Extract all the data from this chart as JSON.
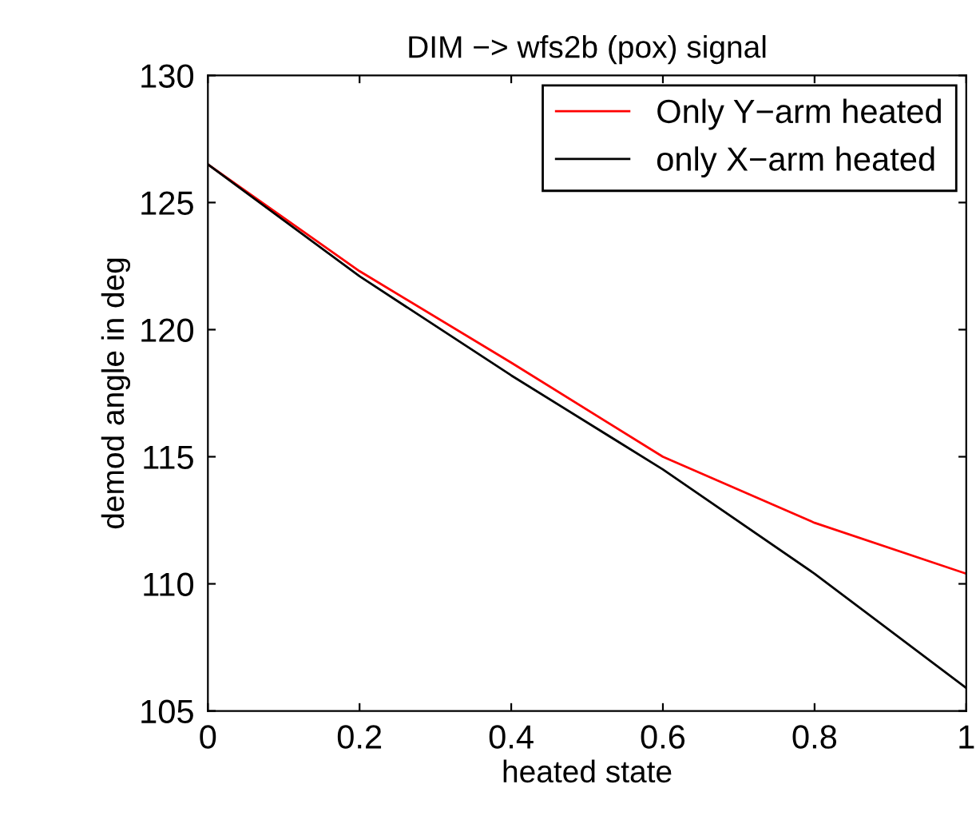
{
  "chart_data": {
    "type": "line",
    "title": "DIM −> wfs2b (pox) signal",
    "xlabel": "heated state",
    "ylabel": "demod angle in deg",
    "x": [
      0,
      0.2,
      0.4,
      0.6,
      0.8,
      1
    ],
    "series": [
      {
        "name": "Only Y−arm heated",
        "color": "#ff0000",
        "values": [
          126.5,
          122.3,
          118.7,
          115.0,
          112.4,
          110.4
        ]
      },
      {
        "name": "only X−arm heated",
        "color": "#000000",
        "values": [
          126.5,
          122.1,
          118.2,
          114.5,
          110.4,
          105.9
        ]
      }
    ],
    "xlim": [
      0,
      1
    ],
    "xticks": [
      0,
      0.2,
      0.4,
      0.6,
      0.8,
      1
    ],
    "ylim": [
      105,
      130
    ],
    "yticks": [
      105,
      110,
      115,
      120,
      125,
      130
    ],
    "grid": false,
    "legend": "top right",
    "marker": "none",
    "line_style": "solid"
  }
}
